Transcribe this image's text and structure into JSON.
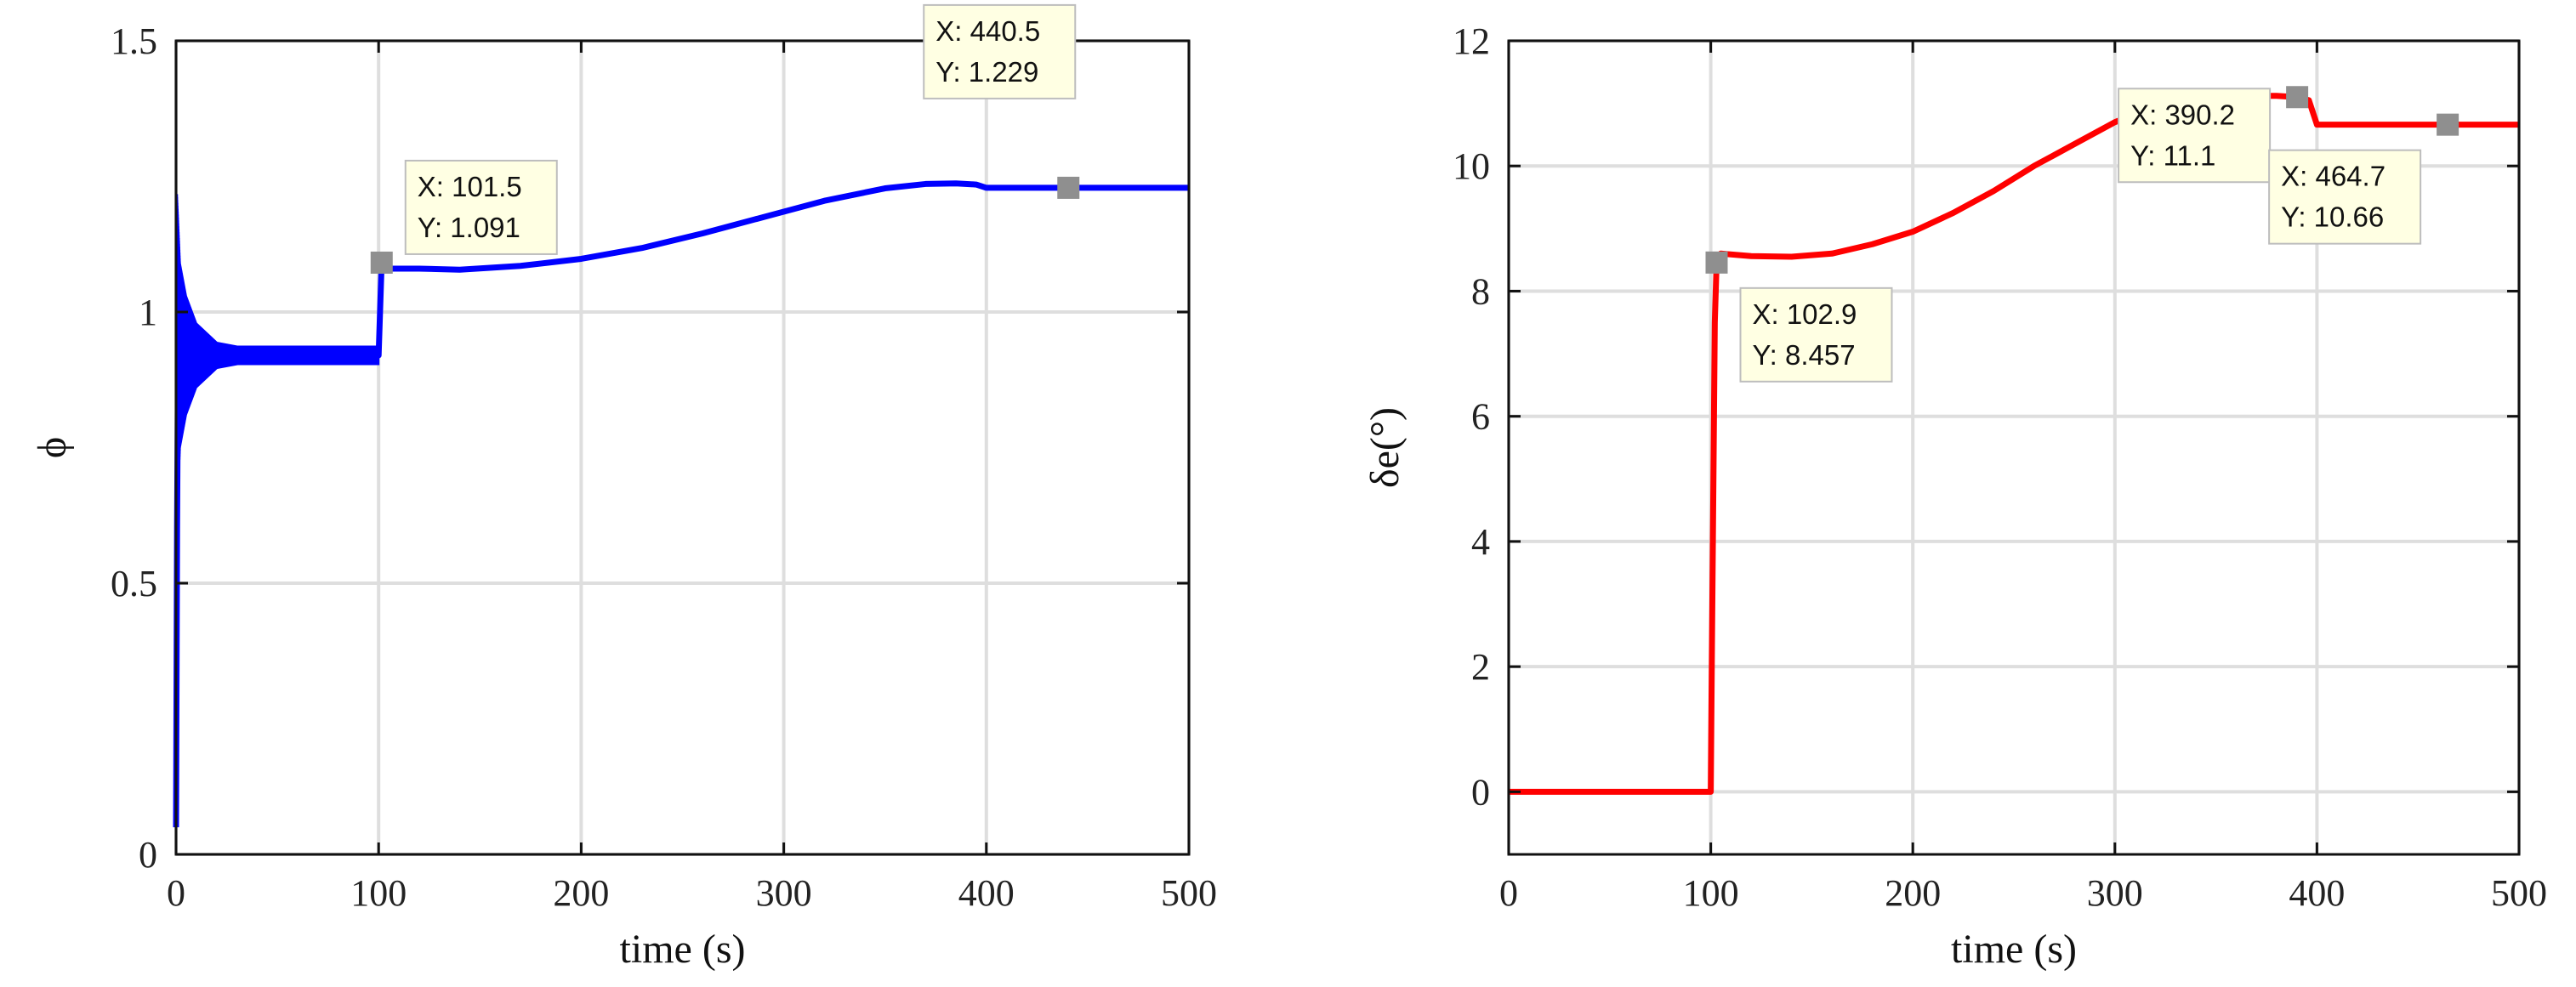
{
  "chart_data": [
    {
      "type": "line",
      "xlabel": "time (s)",
      "ylabel": "ϕ",
      "xlim": [
        0,
        500
      ],
      "ylim": [
        0,
        1.5
      ],
      "xticks": [
        "0",
        "100",
        "200",
        "300",
        "400",
        "500"
      ],
      "yticks": [
        "0",
        "0.5",
        "1",
        "1.5"
      ],
      "grid": true,
      "color": "#0000ff",
      "series": [
        {
          "x": [
            0,
            0.5,
            1,
            2,
            4,
            6,
            10,
            20,
            30,
            60,
            99,
            100,
            101.5,
            103,
            120,
            140,
            170,
            200,
            230,
            260,
            290,
            320,
            350,
            370,
            385,
            395,
            400,
            405,
            440.5,
            500
          ],
          "y": [
            0.05,
            0.6,
            0.92,
            0.93,
            0.92,
            0.92,
            0.92,
            0.92,
            0.92,
            0.92,
            0.92,
            0.92,
            1.091,
            1.08,
            1.08,
            1.078,
            1.085,
            1.098,
            1.118,
            1.145,
            1.175,
            1.205,
            1.228,
            1.236,
            1.237,
            1.235,
            1.229,
            1.229,
            1.229,
            1.229
          ],
          "oscillation": {
            "x_start": 0,
            "x_end": 100,
            "center": 0.92,
            "envelope": [
              [
                0.5,
                0.3
              ],
              [
                2,
                0.17
              ],
              [
                5,
                0.11
              ],
              [
                10,
                0.06
              ],
              [
                20,
                0.025
              ],
              [
                30,
                0.018
              ],
              [
                100,
                0.018
              ]
            ]
          }
        }
      ],
      "datatips": [
        {
          "x": 101.5,
          "y": 1.091,
          "lines": [
            "X: 101.5",
            "Y: 1.091"
          ]
        },
        {
          "x": 440.5,
          "y": 1.229,
          "lines": [
            "X: 440.5",
            "Y: 1.229"
          ]
        }
      ]
    },
    {
      "type": "line",
      "xlabel": "time (s)",
      "ylabel": "δe(°)",
      "xlim": [
        0,
        500
      ],
      "ylim": [
        -1,
        12
      ],
      "xticks": [
        "0",
        "100",
        "200",
        "300",
        "400",
        "500"
      ],
      "yticks": [
        "0",
        "2",
        "4",
        "6",
        "8",
        "10",
        "12"
      ],
      "grid": true,
      "color": "#ff0000",
      "series": [
        {
          "x": [
            0,
            100,
            100.5,
            102,
            102.9,
            105,
            120,
            140,
            160,
            180,
            200,
            220,
            240,
            260,
            280,
            300,
            320,
            340,
            360,
            380,
            390.2,
            396,
            400,
            405,
            464.7,
            500
          ],
          "y": [
            0,
            0,
            2,
            7.5,
            8.457,
            8.6,
            8.56,
            8.55,
            8.6,
            8.75,
            8.95,
            9.25,
            9.6,
            10.0,
            10.35,
            10.7,
            10.95,
            11.08,
            11.12,
            11.12,
            11.1,
            11.05,
            10.66,
            10.66,
            10.66,
            10.66
          ]
        }
      ],
      "datatips": [
        {
          "x": 102.9,
          "y": 8.457,
          "lines": [
            "X: 102.9",
            "Y: 8.457"
          ]
        },
        {
          "x": 390.2,
          "y": 11.1,
          "lines": [
            "X: 390.2",
            "Y: 11.1"
          ]
        },
        {
          "x": 464.7,
          "y": 10.66,
          "lines": [
            "X: 464.7",
            "Y: 10.66"
          ]
        }
      ]
    }
  ]
}
